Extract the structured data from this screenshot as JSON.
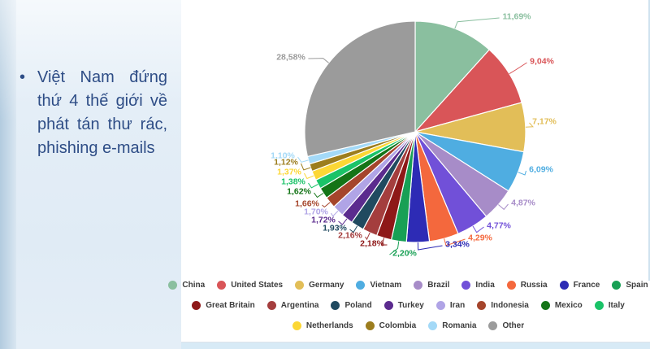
{
  "slide": {
    "bullet": {
      "glyph": "•",
      "text": "Việt Nam đứng thứ 4 thế giới về phát tán thư rác, phishing e-mails"
    }
  },
  "chart_data": {
    "type": "pie",
    "title": "",
    "unit": "%",
    "value_format": "comma-decimal percent",
    "legend_position": "bottom",
    "slices": [
      {
        "label": "China",
        "value": 11.69,
        "display": "11,69%",
        "color": "#8abf9f"
      },
      {
        "label": "United States",
        "value": 9.04,
        "display": "9,04%",
        "color": "#d95558"
      },
      {
        "label": "Germany",
        "value": 7.17,
        "display": "7,17%",
        "color": "#e2be58"
      },
      {
        "label": "Vietnam",
        "value": 6.09,
        "display": "6,09%",
        "color": "#4fade1"
      },
      {
        "label": "Brazil",
        "value": 4.87,
        "display": "4,87%",
        "color": "#a78cc8"
      },
      {
        "label": "India",
        "value": 4.77,
        "display": "4,77%",
        "color": "#7150d8"
      },
      {
        "label": "Russia",
        "value": 4.29,
        "display": "4,29%",
        "color": "#f4683d"
      },
      {
        "label": "France",
        "value": 3.34,
        "display": "3,34%",
        "color": "#2d2bb5"
      },
      {
        "label": "Spain",
        "value": 2.2,
        "display": "2,20%",
        "color": "#18a055"
      },
      {
        "label": "Great Britain",
        "value": 2.18,
        "display": "2,18%",
        "color": "#8e1818"
      },
      {
        "label": "Argentina",
        "value": 2.16,
        "display": "2,16%",
        "color": "#a43e3e"
      },
      {
        "label": "Poland",
        "value": 1.93,
        "display": "1,93%",
        "color": "#204a60"
      },
      {
        "label": "Turkey",
        "value": 1.72,
        "display": "1,72%",
        "color": "#5b2b8e"
      },
      {
        "label": "Iran",
        "value": 1.7,
        "display": "1,70%",
        "color": "#b0a4e6"
      },
      {
        "label": "Indonesia",
        "value": 1.66,
        "display": "1,66%",
        "color": "#a5452c"
      },
      {
        "label": "Mexico",
        "value": 1.62,
        "display": "1,62%",
        "color": "#147417"
      },
      {
        "label": "Italy",
        "value": 1.38,
        "display": "1,38%",
        "color": "#1ac368"
      },
      {
        "label": "Netherlands",
        "value": 1.37,
        "display": "1,37%",
        "color": "#fcd735"
      },
      {
        "label": "Colombia",
        "value": 1.12,
        "display": "1,12%",
        "color": "#9c7d1e"
      },
      {
        "label": "Romania",
        "value": 1.1,
        "display": "1,10%",
        "color": "#a3d9f7"
      },
      {
        "label": "Other",
        "value": 28.58,
        "display": "28,58%",
        "color": "#9b9b9b"
      }
    ]
  }
}
